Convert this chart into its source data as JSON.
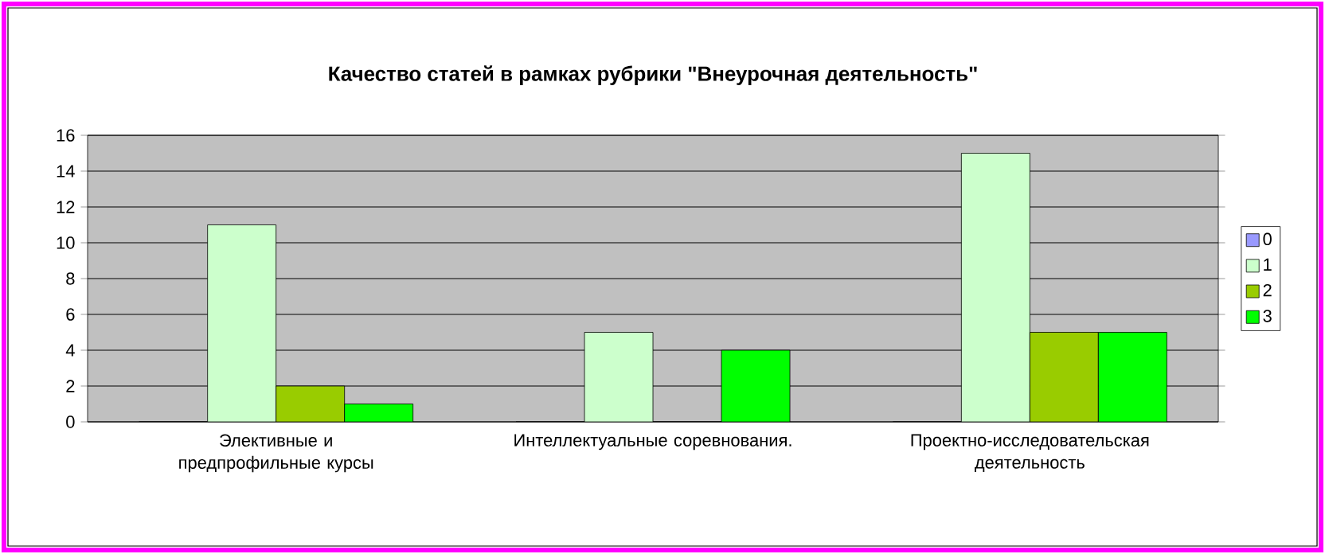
{
  "chart_data": {
    "type": "bar",
    "title": "Качество статей в рамках рубрики \"Внеурочная деятельность\"",
    "categories": [
      "Элективные и предпрофильные курсы",
      "Интеллектуальные соревнования.",
      "Проектно-исследовательская деятельность"
    ],
    "series": [
      {
        "name": "0",
        "color": "#9999ff",
        "values": [
          0,
          0,
          0
        ]
      },
      {
        "name": "1",
        "color": "#ccffcc",
        "values": [
          11,
          5,
          15
        ]
      },
      {
        "name": "2",
        "color": "#99cc00",
        "values": [
          2,
          0,
          5
        ]
      },
      {
        "name": "3",
        "color": "#00ff00",
        "values": [
          1,
          4,
          5
        ]
      }
    ],
    "ylim": [
      0,
      16
    ],
    "yticks": [
      0,
      2,
      4,
      6,
      8,
      10,
      12,
      14,
      16
    ],
    "grid": "y",
    "legend": "right"
  }
}
